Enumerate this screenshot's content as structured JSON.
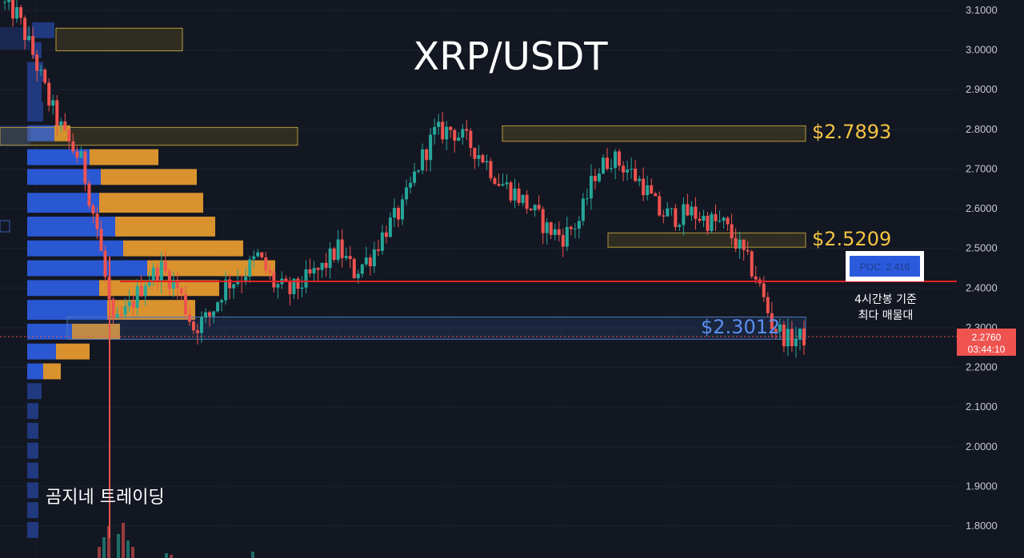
{
  "title": "XRP/USDT",
  "watermark": "곰지네 트레이딩",
  "annotation_lines": [
    "4시간봉 기준",
    "최다 매물대"
  ],
  "poc_label": "POC: 2.416",
  "current_price": {
    "value": "2.2760",
    "countdown": "03:44:10"
  },
  "levels": [
    {
      "label": "$2.7893",
      "color": "#f5c542"
    },
    {
      "label": "$2.5209",
      "color": "#f5c542"
    },
    {
      "label": "$2.3012",
      "color": "#5b8ff0"
    }
  ],
  "colors": {
    "bull": "#26a69a",
    "bear": "#ef5350",
    "poc_line": "#e02424",
    "vp_buy": "#2b5bdc",
    "vp_sell": "#f0a030",
    "background": "#131722"
  },
  "chart_data": {
    "type": "candlestick",
    "symbol": "XRP/USDT",
    "timeframe": "4h",
    "y_ticks": [
      "3.1000",
      "3.0000",
      "2.9000",
      "2.8000",
      "2.7000",
      "2.6000",
      "2.5000",
      "2.4000",
      "2.3000",
      "2.2000",
      "2.1000",
      "2.0000",
      "1.9000",
      "1.8000"
    ],
    "ylim": [
      1.77,
      3.13
    ],
    "anchors": [
      3.12,
      3.09,
      2.99,
      2.87,
      2.78,
      2.72,
      2.55,
      2.3,
      2.35,
      2.42,
      2.45,
      2.4,
      2.3,
      2.33,
      2.41,
      2.43,
      2.48,
      2.41,
      2.39,
      2.42,
      2.45,
      2.5,
      2.44,
      2.48,
      2.55,
      2.6,
      2.71,
      2.79,
      2.8,
      2.77,
      2.73,
      2.67,
      2.64,
      2.6,
      2.55,
      2.53,
      2.57,
      2.69,
      2.73,
      2.7,
      2.66,
      2.59,
      2.58,
      2.59,
      2.57,
      2.56,
      2.5,
      2.43,
      2.31,
      2.27,
      2.276
    ],
    "key_levels": [
      2.7893,
      2.5209,
      2.3012
    ],
    "poc": 2.416,
    "last_price": 2.276
  }
}
